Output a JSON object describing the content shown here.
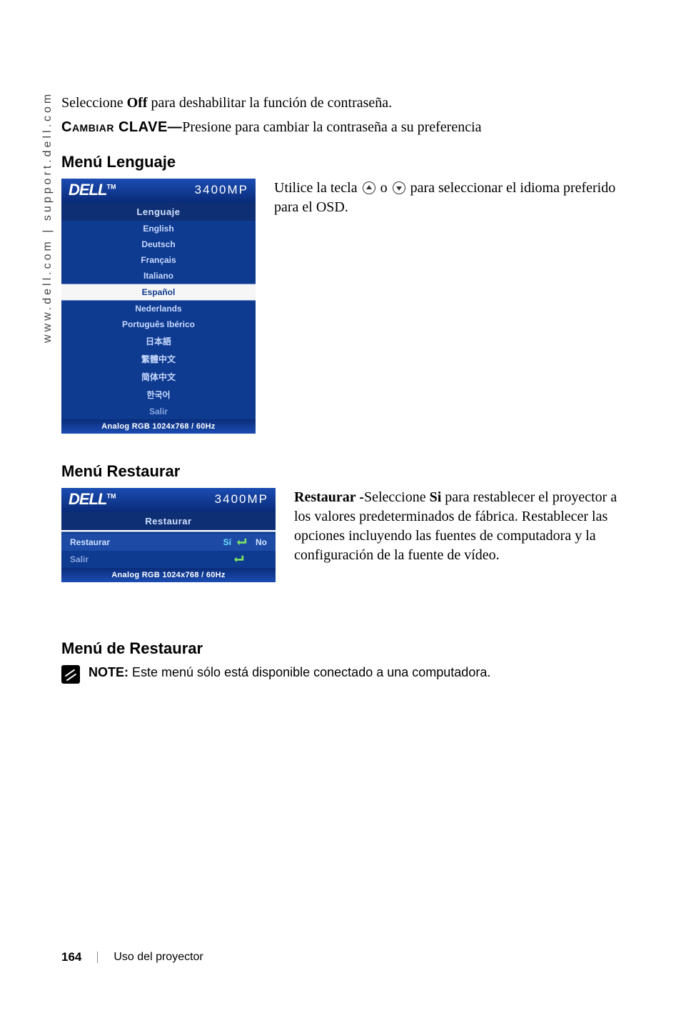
{
  "side_url": "www.dell.com | support.dell.com",
  "para1_pre": "Seleccione ",
  "para1_bold": "Off",
  "para1_post": " para deshabilitar la función de contraseña.",
  "cambiar_label": "Cambiar CLAVE—",
  "cambiar_text": "Presione para cambiar la contraseña a su preferencia",
  "lenguaje": {
    "heading": "Menú Lenguaje",
    "osd": {
      "logo": "DELL",
      "tm": "TM",
      "model": "3400MP",
      "title": "Lenguaje",
      "items": [
        "English",
        "Deutsch",
        "Français",
        "Italiano",
        "Español",
        "Nederlands",
        "Português Ibérico",
        "日本語",
        "繁體中文",
        "简体中文",
        "한국어",
        "Salir"
      ],
      "selected_index": 4,
      "footer": "Analog RGB 1024x768 / 60Hz"
    },
    "body_pre": "Utilice la tecla ",
    "body_mid": " o ",
    "body_post": " para seleccionar el idioma preferido para el OSD."
  },
  "restaurar": {
    "heading": "Menú Restaurar",
    "osd": {
      "logo": "DELL",
      "tm": "TM",
      "model": "3400MP",
      "title": "Restaurar",
      "row_label": "Restaurar",
      "si": "Sí",
      "no": "No",
      "salir": "Salir",
      "footer": "Analog RGB 1024x768 / 60Hz"
    },
    "body_bold1": "Restaurar -",
    "body_t1": "Seleccione ",
    "body_bold2": "Si",
    "body_t2": " para restablecer el proyector a los valores predeterminados de fábrica. Restablecer las opciones incluyendo las fuentes de computadora y la configuración de la fuente de vídeo."
  },
  "de_restaurar": {
    "heading": "Menú de Restaurar",
    "note_label": "NOTE: ",
    "note_text": "Este menú sólo está disponible conectado a una computadora."
  },
  "footer": {
    "page": "164",
    "section": "Uso del proyector"
  },
  "colors": {
    "blue_dark": "#0a2c7a",
    "blue_mid": "#0e3a8f",
    "blue_light": "#1b4db3",
    "cyan": "#6de0ff"
  }
}
